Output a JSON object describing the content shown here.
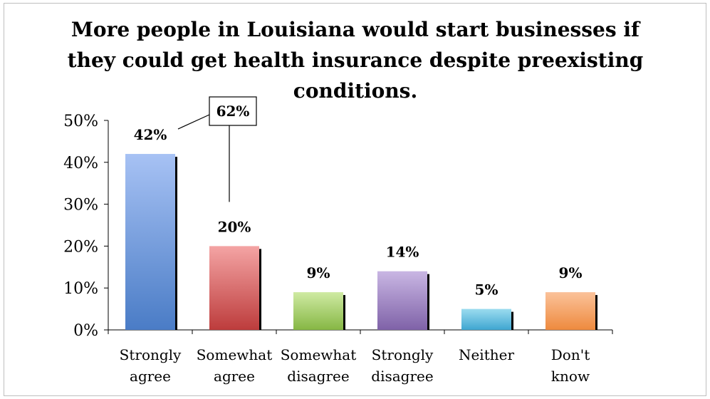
{
  "chart_data": {
    "type": "bar",
    "title_lines": [
      "More people in Louisiana would start businesses if",
      "they could get health insurance despite preexisting",
      "conditions."
    ],
    "categories": [
      [
        "Strongly",
        "agree"
      ],
      [
        "Somewhat",
        "agree"
      ],
      [
        "Somewhat",
        "disagree"
      ],
      [
        "Strongly",
        "disagree"
      ],
      [
        "Neither"
      ],
      [
        "Don't",
        "know"
      ]
    ],
    "values": [
      42,
      20,
      9,
      14,
      5,
      9
    ],
    "value_labels": [
      "42%",
      "20%",
      "9%",
      "14%",
      "5%",
      "9%"
    ],
    "ylim": [
      0,
      50
    ],
    "y_ticks": [
      0,
      10,
      20,
      30,
      40,
      50
    ],
    "y_tick_labels": [
      "0%",
      "10%",
      "20%",
      "30%",
      "40%",
      "50%"
    ],
    "callout": {
      "text": "62%",
      "refers_to": [
        "Strongly agree",
        "Somewhat agree"
      ]
    },
    "bar_colors": [
      {
        "top": "#a7c2f4",
        "bottom": "#4a7cc6"
      },
      {
        "top": "#f4a4a4",
        "bottom": "#bd3c3c"
      },
      {
        "top": "#cfeaa3",
        "bottom": "#86b744"
      },
      {
        "top": "#c9b6e3",
        "bottom": "#7f62a8"
      },
      {
        "top": "#9bdcef",
        "bottom": "#3fa6d1"
      },
      {
        "top": "#fbc29a",
        "bottom": "#ee8a3e"
      }
    ],
    "shadow_color": "#000000",
    "grid": false,
    "legend": "none"
  }
}
